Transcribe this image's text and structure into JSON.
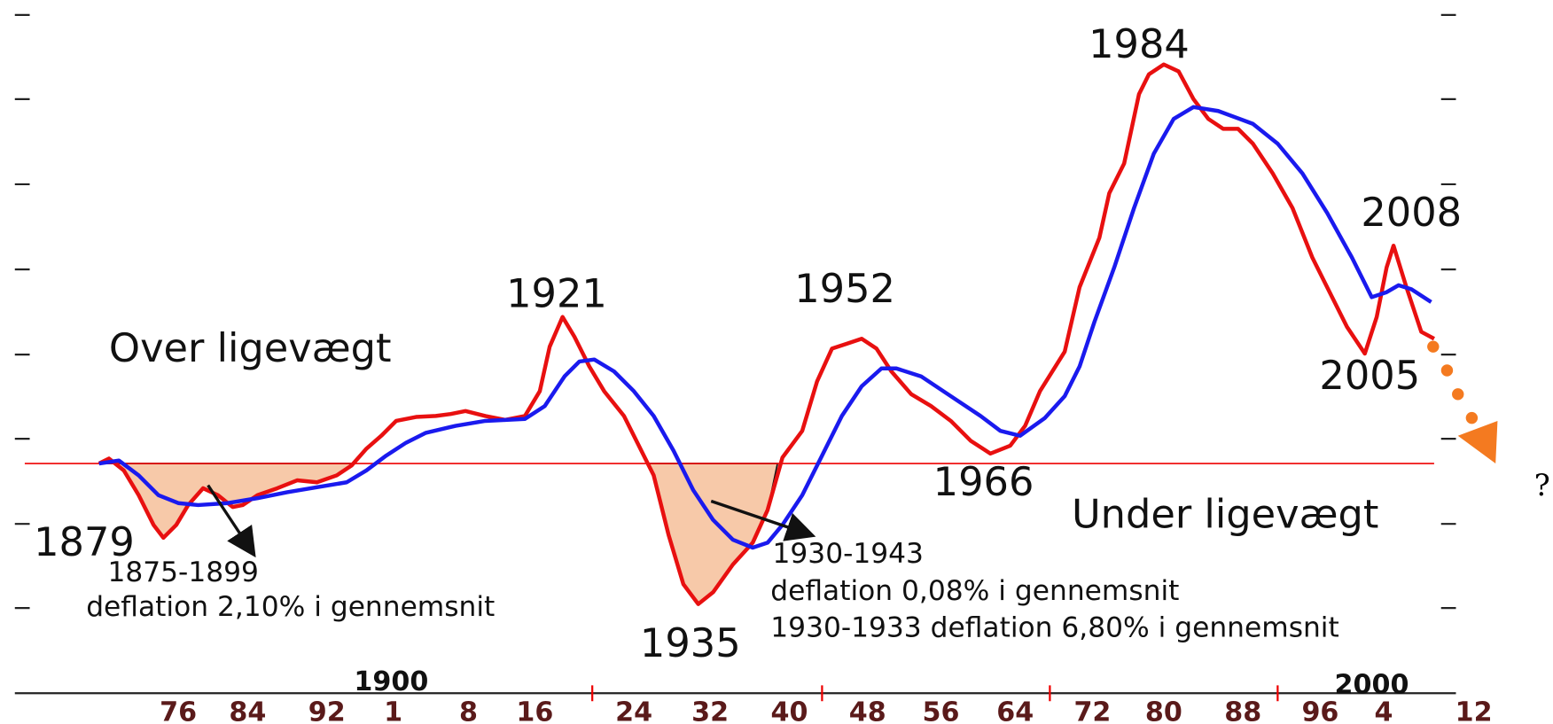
{
  "labels": {
    "peak_1984": "1984",
    "peak_2008": "2008",
    "peak_1921": "1921",
    "peak_1952": "1952",
    "above": "Over ligevægt",
    "trough_2005": "2005",
    "trough_1966": "1966",
    "below": "Under ligevægt",
    "start_1879": "1879",
    "trough_1935": "1935",
    "question": "?"
  },
  "notes": {
    "period_1": "1875-1899",
    "period_1_text": "deflation 2,10% i gennemsnit",
    "period_2": "1930-1943",
    "period_2_text": "deflation 0,08% i gennemsnit",
    "period_3_text": "1930-1933 deflation 6,80% i gennemsnit"
  },
  "x_axis": {
    "centuries": [
      "1900",
      "2000"
    ],
    "ticks": [
      "76",
      "84",
      "92",
      "1",
      "8",
      "16",
      "24",
      "32",
      "40",
      "48",
      "56",
      "64",
      "72",
      "80",
      "88",
      "96",
      "4",
      "12"
    ]
  }
}
